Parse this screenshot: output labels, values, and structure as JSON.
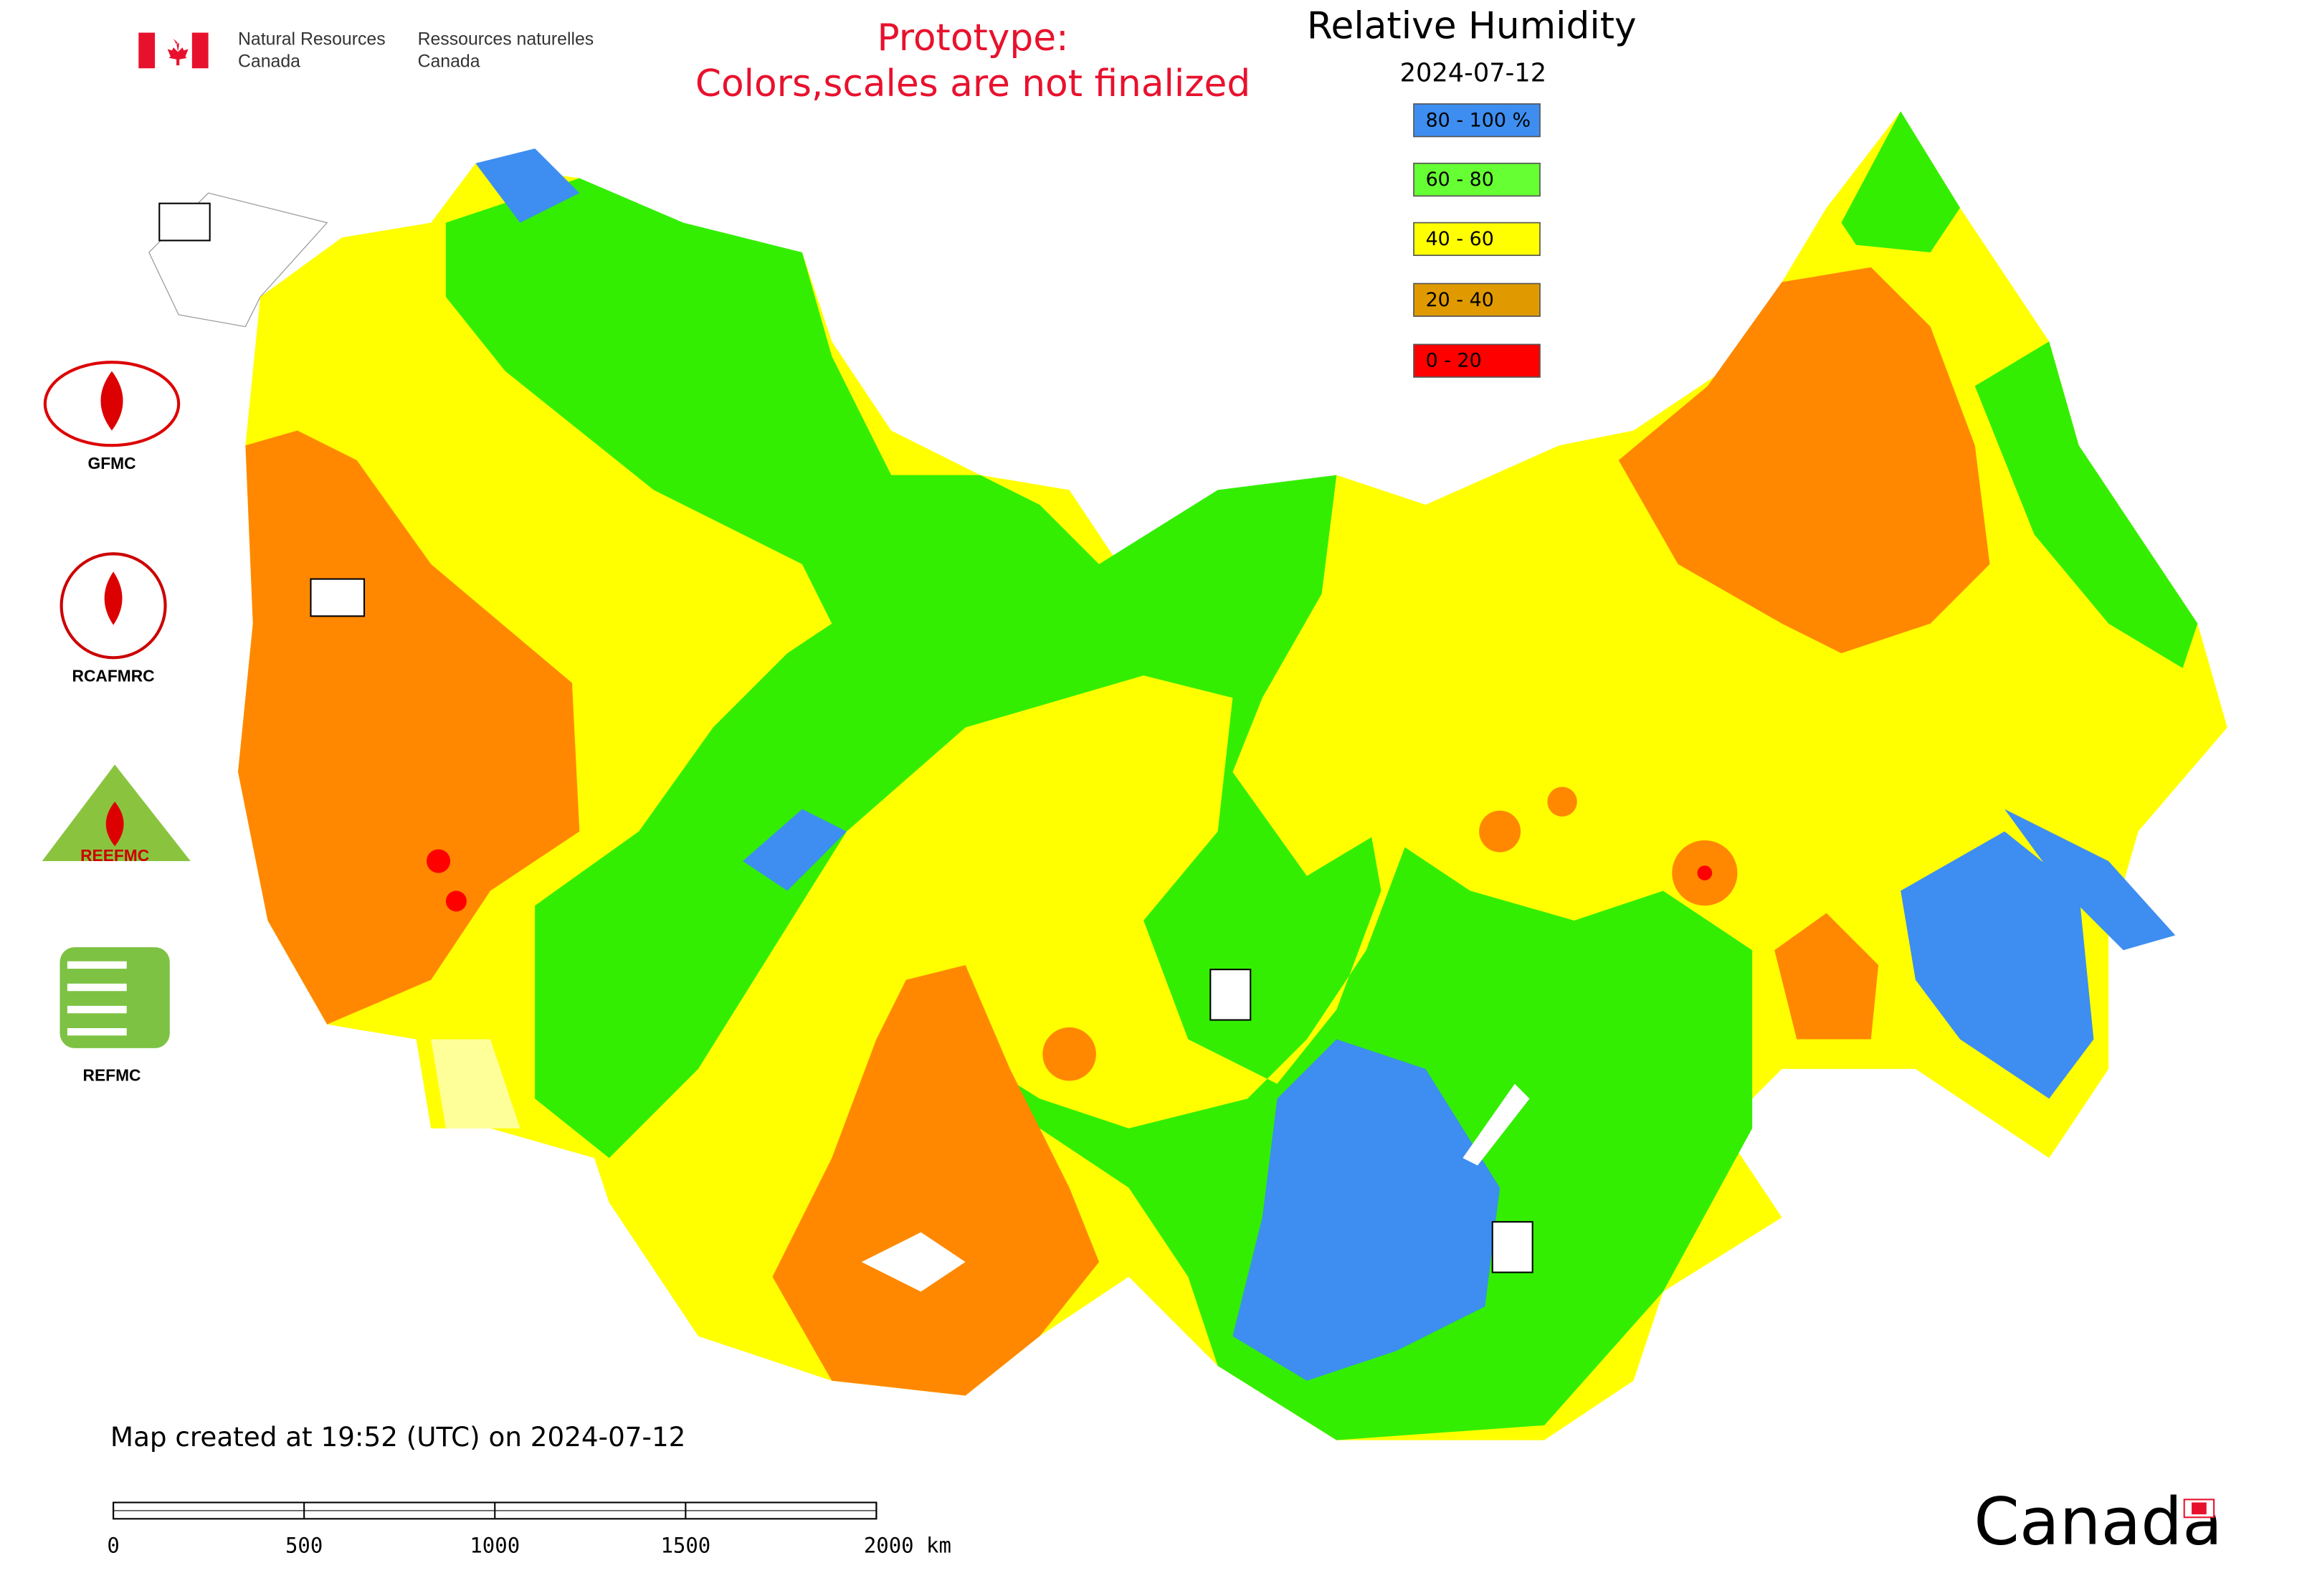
{
  "header": {
    "nrcan_en": [
      "Natural Resources",
      "Canada"
    ],
    "nrcan_fr": [
      "Ressources naturelles",
      "Canada"
    ]
  },
  "notice": [
    "Prototype:",
    "Colors,scales are not finalized"
  ],
  "legend": {
    "title": "Relative Humidity",
    "date": "2024-07-12",
    "items": [
      {
        "label": "80 - 100 %",
        "color": "#3d8ef0"
      },
      {
        "label": "60 - 80",
        "color": "#66ff33"
      },
      {
        "label": "40 - 60",
        "color": "#ffff00"
      },
      {
        "label": "20 - 40",
        "color": "#e09a00"
      },
      {
        "label": "0 - 20",
        "color": "#ff0000"
      }
    ]
  },
  "logos": [
    "GFMC",
    "RCAFMRC",
    "REEFMC",
    "REFMC"
  ],
  "footer": {
    "created": "Map created at 19:52 (UTC) on 2024-07-12",
    "wordmark": "Canada"
  },
  "scale_bar": {
    "ticks": [
      0,
      500,
      1000,
      1500,
      {
        "value": 2000,
        "label": "2000 km"
      }
    ]
  }
}
